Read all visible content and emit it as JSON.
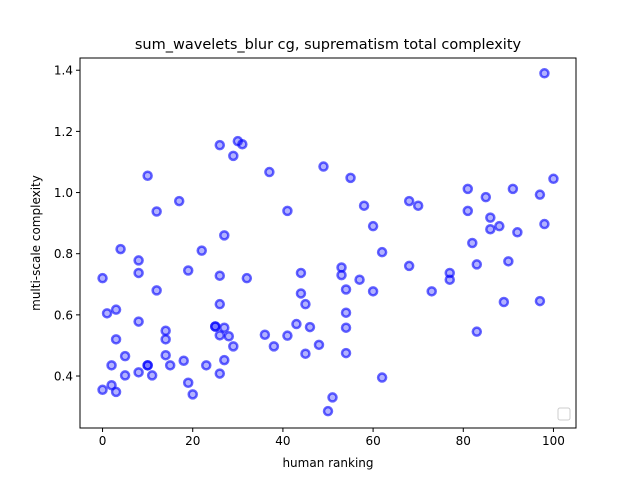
{
  "chart_data": {
    "type": "scatter",
    "title": "sum_wavelets_blur cg, suprematism total complexity",
    "xlabel": "human ranking",
    "ylabel": "multi-scale complexity",
    "xlim": [
      -5,
      105
    ],
    "ylim": [
      0.23,
      1.44
    ],
    "x_ticks": [
      0,
      20,
      40,
      60,
      80,
      100
    ],
    "x_tick_labels": [
      "0",
      "20",
      "40",
      "60",
      "80",
      "100"
    ],
    "y_ticks": [
      0.4,
      0.6,
      0.8,
      1.0,
      1.2,
      1.4
    ],
    "y_tick_labels": [
      "0.4",
      "0.6",
      "0.8",
      "1.0",
      "1.2",
      "1.4"
    ],
    "grid": false,
    "legend": "lower-right (empty)",
    "marker_color": "#0000ff",
    "points": [
      {
        "x": 0,
        "y": 0.72
      },
      {
        "x": 0,
        "y": 0.355
      },
      {
        "x": 1,
        "y": 0.605
      },
      {
        "x": 2,
        "y": 0.37
      },
      {
        "x": 2,
        "y": 0.435
      },
      {
        "x": 3,
        "y": 0.52
      },
      {
        "x": 3,
        "y": 0.617
      },
      {
        "x": 3,
        "y": 0.348
      },
      {
        "x": 4,
        "y": 0.815
      },
      {
        "x": 5,
        "y": 0.465
      },
      {
        "x": 5,
        "y": 0.402
      },
      {
        "x": 8,
        "y": 0.778
      },
      {
        "x": 8,
        "y": 0.737
      },
      {
        "x": 8,
        "y": 0.578
      },
      {
        "x": 8,
        "y": 0.412
      },
      {
        "x": 10,
        "y": 1.055
      },
      {
        "x": 10,
        "y": 0.435
      },
      {
        "x": 10,
        "y": 0.435
      },
      {
        "x": 11,
        "y": 0.402
      },
      {
        "x": 12,
        "y": 0.938
      },
      {
        "x": 12,
        "y": 0.68
      },
      {
        "x": 14,
        "y": 0.548
      },
      {
        "x": 14,
        "y": 0.52
      },
      {
        "x": 14,
        "y": 0.468
      },
      {
        "x": 15,
        "y": 0.435
      },
      {
        "x": 17,
        "y": 0.972
      },
      {
        "x": 18,
        "y": 0.45
      },
      {
        "x": 19,
        "y": 0.745
      },
      {
        "x": 19,
        "y": 0.378
      },
      {
        "x": 20,
        "y": 0.34
      },
      {
        "x": 22,
        "y": 0.81
      },
      {
        "x": 23,
        "y": 0.435
      },
      {
        "x": 25,
        "y": 0.562
      },
      {
        "x": 25,
        "y": 0.562
      },
      {
        "x": 26,
        "y": 1.155
      },
      {
        "x": 26,
        "y": 0.728
      },
      {
        "x": 26,
        "y": 0.635
      },
      {
        "x": 26,
        "y": 0.533
      },
      {
        "x": 26,
        "y": 0.408
      },
      {
        "x": 27,
        "y": 0.86
      },
      {
        "x": 27,
        "y": 0.558
      },
      {
        "x": 27,
        "y": 0.452
      },
      {
        "x": 28,
        "y": 0.53
      },
      {
        "x": 29,
        "y": 1.12
      },
      {
        "x": 29,
        "y": 0.497
      },
      {
        "x": 30,
        "y": 1.168
      },
      {
        "x": 31,
        "y": 1.158
      },
      {
        "x": 32,
        "y": 0.72
      },
      {
        "x": 36,
        "y": 0.535
      },
      {
        "x": 37,
        "y": 1.067
      },
      {
        "x": 38,
        "y": 0.497
      },
      {
        "x": 41,
        "y": 0.94
      },
      {
        "x": 41,
        "y": 0.532
      },
      {
        "x": 43,
        "y": 0.57
      },
      {
        "x": 44,
        "y": 0.737
      },
      {
        "x": 44,
        "y": 0.67
      },
      {
        "x": 45,
        "y": 0.635
      },
      {
        "x": 45,
        "y": 0.473
      },
      {
        "x": 46,
        "y": 0.56
      },
      {
        "x": 48,
        "y": 0.502
      },
      {
        "x": 49,
        "y": 1.085
      },
      {
        "x": 50,
        "y": 0.285
      },
      {
        "x": 51,
        "y": 0.33
      },
      {
        "x": 53,
        "y": 0.755
      },
      {
        "x": 53,
        "y": 0.73
      },
      {
        "x": 54,
        "y": 0.683
      },
      {
        "x": 54,
        "y": 0.607
      },
      {
        "x": 54,
        "y": 0.558
      },
      {
        "x": 54,
        "y": 0.475
      },
      {
        "x": 55,
        "y": 1.048
      },
      {
        "x": 57,
        "y": 0.715
      },
      {
        "x": 58,
        "y": 0.957
      },
      {
        "x": 60,
        "y": 0.89
      },
      {
        "x": 60,
        "y": 0.677
      },
      {
        "x": 62,
        "y": 0.805
      },
      {
        "x": 62,
        "y": 0.395
      },
      {
        "x": 68,
        "y": 0.972
      },
      {
        "x": 68,
        "y": 0.76
      },
      {
        "x": 70,
        "y": 0.957
      },
      {
        "x": 73,
        "y": 0.677
      },
      {
        "x": 77,
        "y": 0.737
      },
      {
        "x": 77,
        "y": 0.715
      },
      {
        "x": 81,
        "y": 1.012
      },
      {
        "x": 81,
        "y": 0.94
      },
      {
        "x": 82,
        "y": 0.835
      },
      {
        "x": 83,
        "y": 0.765
      },
      {
        "x": 83,
        "y": 0.545
      },
      {
        "x": 85,
        "y": 0.985
      },
      {
        "x": 86,
        "y": 0.918
      },
      {
        "x": 86,
        "y": 0.88
      },
      {
        "x": 88,
        "y": 0.89
      },
      {
        "x": 89,
        "y": 0.642
      },
      {
        "x": 90,
        "y": 0.775
      },
      {
        "x": 91,
        "y": 1.012
      },
      {
        "x": 92,
        "y": 0.87
      },
      {
        "x": 97,
        "y": 0.993
      },
      {
        "x": 97,
        "y": 0.645
      },
      {
        "x": 98,
        "y": 1.39
      },
      {
        "x": 98,
        "y": 0.897
      },
      {
        "x": 100,
        "y": 1.045
      }
    ]
  }
}
